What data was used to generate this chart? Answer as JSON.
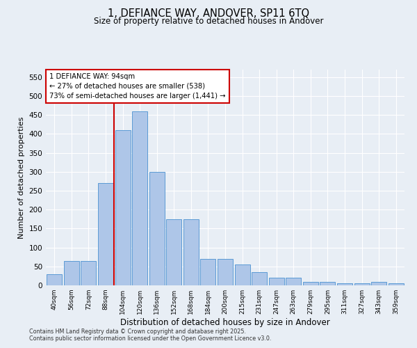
{
  "title_line1": "1, DEFIANCE WAY, ANDOVER, SP11 6TQ",
  "title_line2": "Size of property relative to detached houses in Andover",
  "xlabel": "Distribution of detached houses by size in Andover",
  "ylabel": "Number of detached properties",
  "bar_labels": [
    "40sqm",
    "56sqm",
    "72sqm",
    "88sqm",
    "104sqm",
    "120sqm",
    "136sqm",
    "152sqm",
    "168sqm",
    "184sqm",
    "200sqm",
    "215sqm",
    "231sqm",
    "247sqm",
    "263sqm",
    "279sqm",
    "295sqm",
    "311sqm",
    "327sqm",
    "343sqm",
    "359sqm"
  ],
  "bar_values": [
    30,
    65,
    65,
    270,
    410,
    460,
    300,
    175,
    175,
    70,
    70,
    55,
    35,
    20,
    20,
    10,
    10,
    5,
    5,
    10,
    5
  ],
  "bar_color": "#aec6e8",
  "bar_edge_color": "#5b9bd5",
  "annotation_text": "1 DEFIANCE WAY: 94sqm\n← 27% of detached houses are smaller (538)\n73% of semi-detached houses are larger (1,441) →",
  "annotation_box_color": "#ffffff",
  "annotation_box_edge": "#cc0000",
  "vline_color": "#cc0000",
  "background_color": "#e8eef5",
  "ylim": [
    0,
    570
  ],
  "yticks": [
    0,
    50,
    100,
    150,
    200,
    250,
    300,
    350,
    400,
    450,
    500,
    550
  ],
  "footer_line1": "Contains HM Land Registry data © Crown copyright and database right 2025.",
  "footer_line2": "Contains public sector information licensed under the Open Government Licence v3.0.",
  "vline_x": 3.5
}
